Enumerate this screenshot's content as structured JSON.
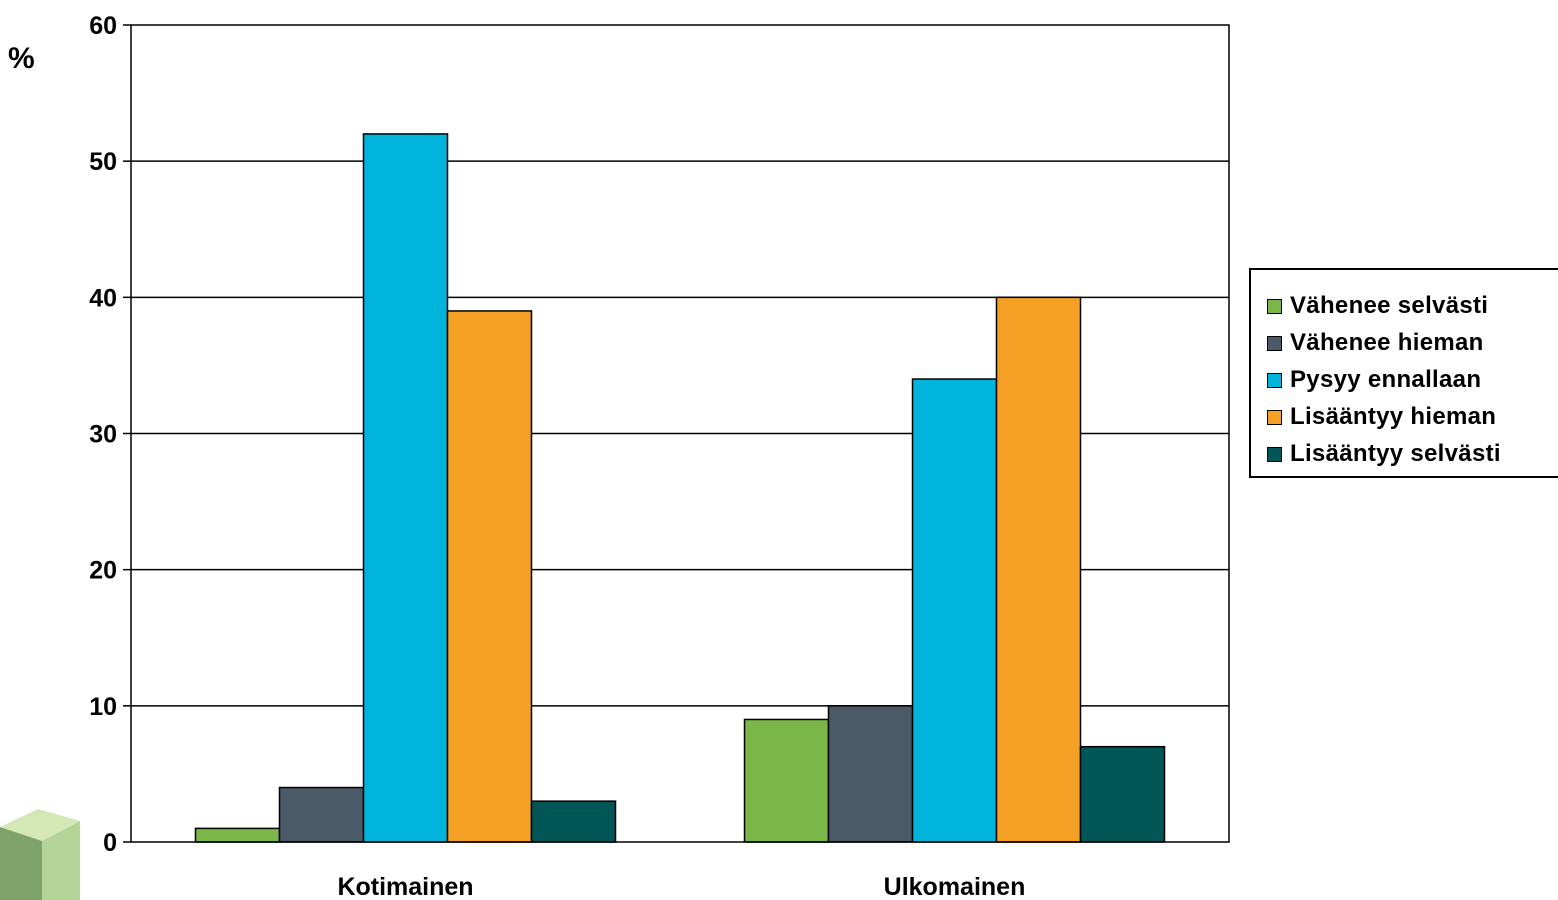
{
  "chart_data": {
    "type": "bar",
    "title": "",
    "ylabel": "%",
    "xlabel": "",
    "ylim": [
      0,
      60
    ],
    "yticks": [
      0,
      10,
      20,
      30,
      40,
      50,
      60
    ],
    "grid": true,
    "legend_position": "right",
    "categories": [
      "Kotimainen",
      "Ulkomainen"
    ],
    "series": [
      {
        "name": "Vähenee selvästi",
        "color": "#7ab648",
        "values": [
          1,
          9
        ]
      },
      {
        "name": "Vähenee hieman",
        "color": "#4a5a68",
        "values": [
          4,
          10
        ]
      },
      {
        "name": "Pysyy ennallaan",
        "color": "#00b4dc",
        "values": [
          52,
          34
        ]
      },
      {
        "name": "Lisääntyy hieman",
        "color": "#f3a024",
        "values": [
          39,
          40
        ]
      },
      {
        "name": "Lisääntyy selvästi",
        "color": "#005657",
        "values": [
          3,
          7
        ]
      }
    ]
  },
  "decoration": {
    "logo": "green-cube-logo"
  }
}
